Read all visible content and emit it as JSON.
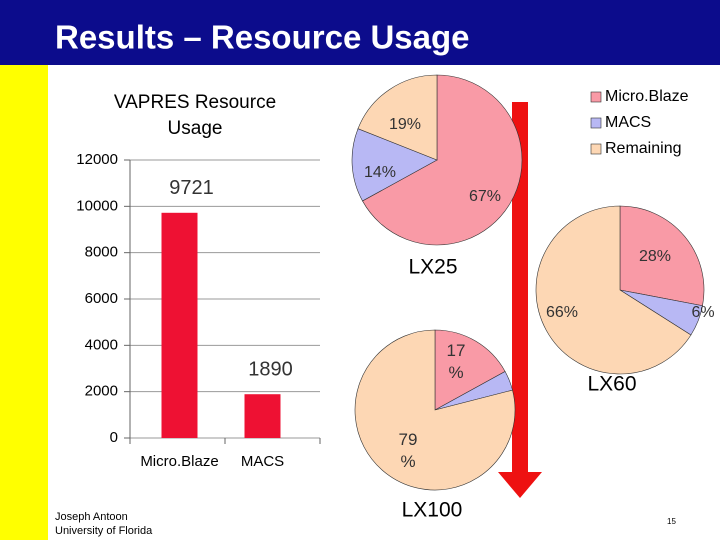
{
  "title": "Results – Resource Usage",
  "footer": {
    "author": "Joseph Antoon",
    "affiliation": "University of Florida",
    "page": "15"
  },
  "chart_data": [
    {
      "type": "bar",
      "title": "VAPRES Resource Usage",
      "categories": [
        "Micro.Blaze",
        "MACS"
      ],
      "values": [
        9721,
        1890
      ],
      "color": "#ee1133",
      "ylim": [
        0,
        12000
      ],
      "yticks": [
        0,
        2000,
        4000,
        6000,
        8000,
        10000,
        12000
      ],
      "grid": true
    },
    {
      "type": "pie",
      "title": "LX25",
      "categories": [
        "Micro.Blaze",
        "MACS",
        "Remaining"
      ],
      "values": [
        67,
        14,
        19
      ],
      "value_labels": [
        "67%",
        "14%",
        "19%"
      ],
      "colors": [
        "#f99aa6",
        "#b8b8f4",
        "#fdd7b4"
      ],
      "legend": "upper right"
    },
    {
      "type": "pie",
      "title": "LX60",
      "categories": [
        "Micro.Blaze",
        "MACS",
        "Remaining"
      ],
      "values": [
        28,
        6,
        66
      ],
      "value_labels": [
        "28%",
        "6%",
        "66%"
      ],
      "colors": [
        "#f99aa6",
        "#b8b8f4",
        "#fdd7b4"
      ]
    },
    {
      "type": "pie",
      "title": "LX100",
      "categories": [
        "Micro.Blaze",
        "MACS",
        "Remaining"
      ],
      "values": [
        17,
        4,
        79
      ],
      "value_labels": [
        "17 %",
        null,
        "79 %"
      ],
      "colors": [
        "#f99aa6",
        "#b8b8f4",
        "#fdd7b4"
      ]
    }
  ]
}
